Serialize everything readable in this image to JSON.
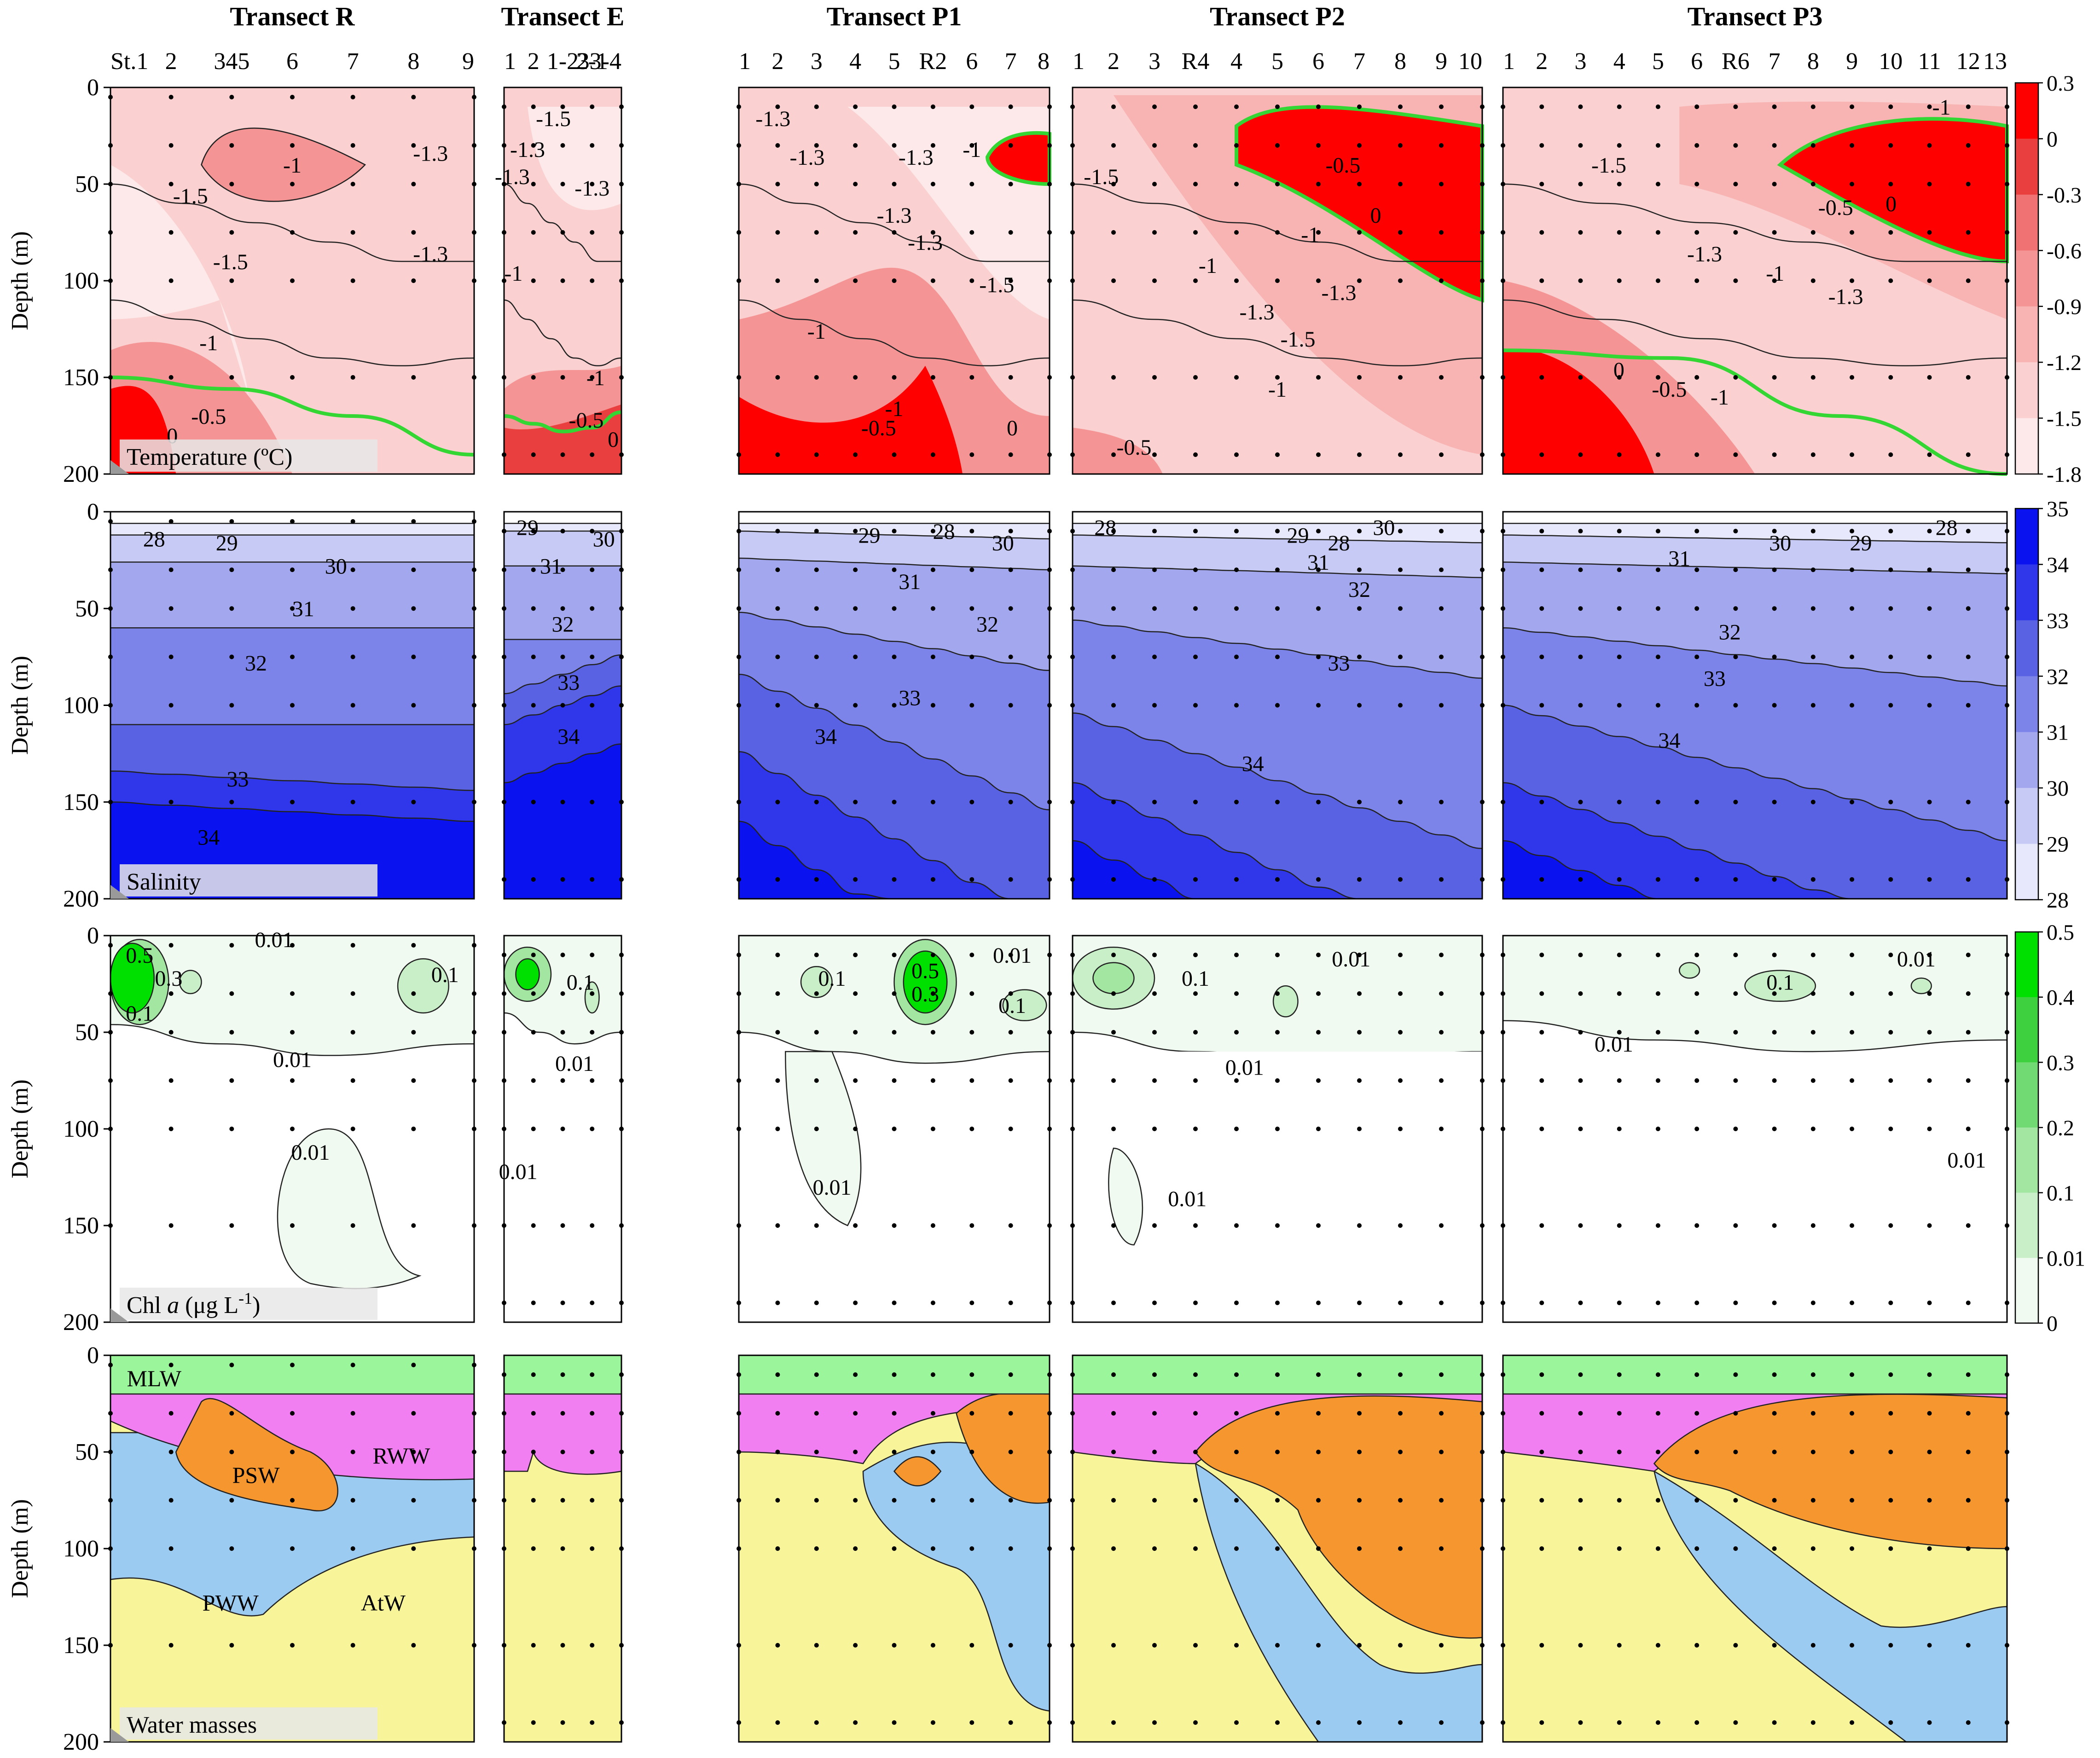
{
  "transects": [
    {
      "id": "R",
      "title": "Transect R",
      "stations": [
        "St.1",
        "2",
        "345",
        "6",
        "7",
        "8",
        "9"
      ]
    },
    {
      "id": "E",
      "title": "Transect E",
      "stations": [
        "1",
        "2",
        "1-2",
        "2-1",
        "33-4"
      ]
    },
    {
      "id": "P1",
      "title": "Transect P1",
      "stations": [
        "1",
        "2",
        "3",
        "4",
        "5",
        "R2",
        "6",
        "7",
        "8"
      ]
    },
    {
      "id": "P2",
      "title": "Transect P2",
      "stations": [
        "1",
        "2",
        "3",
        "R4",
        "4",
        "5",
        "6",
        "7",
        "8",
        "9",
        "10"
      ]
    },
    {
      "id": "P3",
      "title": "Transect P3",
      "stations": [
        "1",
        "2",
        "3",
        "4",
        "5",
        "6",
        "R6",
        "7",
        "8",
        "9",
        "10",
        "11",
        "12",
        "13"
      ]
    }
  ],
  "axes": {
    "ylabel": "Depth (m)",
    "yticks": [
      "0",
      "50",
      "100",
      "150",
      "200"
    ],
    "ylim": [
      0,
      200
    ],
    "inverted": true
  },
  "rows": [
    {
      "id": "temperature",
      "label": "Temperature (ºC)",
      "colorbar": {
        "ticks": [
          "0.3",
          "0",
          "-0.3",
          "-0.6",
          "-0.9",
          "-1.2",
          "-1.5",
          "-1.8"
        ],
        "low": "#ffffff",
        "high": "#ff0000"
      }
    },
    {
      "id": "salinity",
      "label": "Salinity",
      "colorbar": {
        "ticks": [
          "35",
          "34",
          "33",
          "32",
          "31",
          "30",
          "29",
          "28"
        ],
        "low": "#ffffff",
        "high": "#0000ff"
      }
    },
    {
      "id": "chla",
      "label": "Chl a (μg L⁻¹)",
      "label_parts": {
        "pre": "Chl ",
        "italic": "a",
        "post": " (μg L",
        "sup": "-1",
        "end": ")"
      },
      "colorbar": {
        "ticks": [
          "0.5",
          "0.4",
          "0.3",
          "0.2",
          "0.1",
          "0.01",
          "0"
        ],
        "low": "#ffffff",
        "high": "#00e000"
      }
    },
    {
      "id": "watermasses",
      "label": "Water masses"
    }
  ],
  "water_mass_labels": [
    "MLW",
    "RWW",
    "PSW",
    "PWW",
    "AtW"
  ],
  "water_mass_colors": {
    "MLW": "#9bf59b",
    "RWW": "#f27ff2",
    "PSW": "#f5962e",
    "PWW": "#9ccbf2",
    "AtW": "#f7f49a"
  },
  "contour_labels": {
    "temperature": [
      [
        "-1.5",
        "-1",
        "-1.5",
        "-1.3",
        "-1.3",
        "-1",
        "-0.5",
        "0"
      ],
      [
        "-1.3",
        "-1.5",
        "-1.3",
        "-1",
        "-1.3",
        "-1",
        "-0.5",
        "0"
      ],
      [
        "-1.3",
        "-1.3",
        "-1.3",
        "-1.3",
        "-1.3",
        "-1",
        "-1.5",
        "-1",
        "-0.5",
        "0",
        "-1"
      ],
      [
        "-1.5",
        "-1",
        "-1",
        "-0.5",
        "0",
        "-1.3",
        "-1.5",
        "-1.3",
        "-1",
        "-0.5"
      ],
      [
        "-1",
        "-1.5",
        "-1.3",
        "-0.5",
        "0",
        "-1",
        "-1.3",
        "0",
        "-0.5",
        "-1"
      ]
    ],
    "salinity": [
      [
        "28",
        "29",
        "30",
        "31",
        "32",
        "33",
        "34"
      ],
      [
        "29",
        "30",
        "31",
        "32",
        "33",
        "34"
      ],
      [
        "29",
        "28",
        "30",
        "31",
        "32",
        "33",
        "34"
      ],
      [
        "28",
        "29",
        "28",
        "30",
        "31",
        "32",
        "33",
        "34"
      ],
      [
        "31",
        "30",
        "29",
        "28",
        "32",
        "33",
        "34"
      ]
    ],
    "chla": [
      [
        "0.01",
        "0.5",
        "0.3",
        "0.1",
        "0.1",
        "0.01",
        "0.01"
      ],
      [
        "0.1",
        "0.01",
        "0.01"
      ],
      [
        "0.1",
        "0.5",
        "0.3",
        "0.01",
        "0.1",
        "0.01"
      ],
      [
        "0.1",
        "0.01",
        "0.01",
        "0.01"
      ],
      [
        "0.01",
        "0.1",
        "0.01",
        "0.01"
      ]
    ]
  },
  "chart_data": {
    "type": "heatmap",
    "description_type": "contoured vertical sections",
    "rows": [
      "Temperature (ºC)",
      "Salinity",
      "Chl a (μg L-1)",
      "Water masses"
    ],
    "columns": [
      "Transect R",
      "Transect E",
      "Transect P1",
      "Transect P2",
      "Transect P3"
    ],
    "ylabel": "Depth (m)",
    "ylim": [
      0,
      200
    ],
    "temperature_colorbar": [
      -1.8,
      -1.5,
      -1.2,
      -0.9,
      -0.6,
      -0.3,
      0,
      0.3
    ],
    "salinity_colorbar": [
      28,
      29,
      30,
      31,
      32,
      33,
      34,
      35
    ],
    "chla_colorbar": [
      0,
      0.01,
      0.1,
      0.2,
      0.3,
      0.4,
      0.5
    ],
    "water_masses": [
      "MLW",
      "RWW",
      "PSW",
      "PWW",
      "AtW"
    ]
  }
}
